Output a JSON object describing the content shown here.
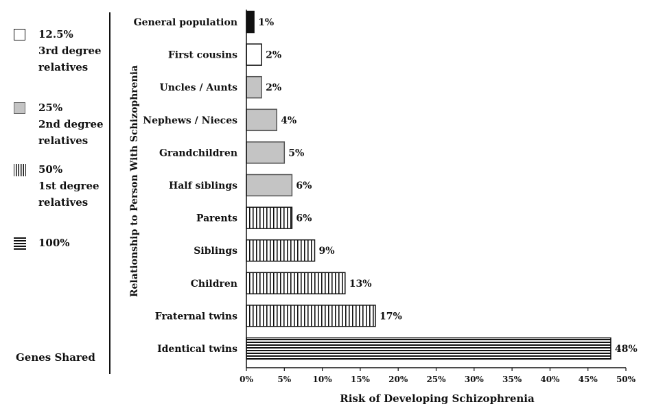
{
  "legend": {
    "items": [
      {
        "pct": "12.5%",
        "line1": "3rd degree",
        "line2": "relatives",
        "pattern": "white"
      },
      {
        "pct": "25%",
        "line1": "2nd degree",
        "line2": "relatives",
        "pattern": "gray"
      },
      {
        "pct": "50%",
        "line1": "1st degree",
        "line2": "relatives",
        "pattern": "vertical"
      },
      {
        "pct": "100%",
        "line1": "",
        "line2": "",
        "pattern": "horizontal"
      }
    ],
    "footer": "Genes Shared"
  },
  "chart_data": {
    "type": "bar",
    "orientation": "horizontal",
    "xlabel": "Risk of Developing Schizophrenia",
    "ylabel": "Relationship to Person With Schizophrenia",
    "xlim": [
      0,
      50
    ],
    "xticks": [
      "0%",
      "5%",
      "10%",
      "15%",
      "20%",
      "25%",
      "30%",
      "35%",
      "40%",
      "45%",
      "50%"
    ],
    "xtick_values": [
      0,
      5,
      10,
      15,
      20,
      25,
      30,
      35,
      40,
      45,
      50
    ],
    "categories": [
      "General population",
      "First cousins",
      "Uncles / Aunts",
      "Nephews / Nieces",
      "Grandchildren",
      "Half siblings",
      "Parents",
      "Siblings",
      "Children",
      "Fraternal twins",
      "Identical twins"
    ],
    "values": [
      1,
      2,
      2,
      4,
      5,
      6,
      6,
      9,
      13,
      17,
      48
    ],
    "value_labels": [
      "1%",
      "2%",
      "2%",
      "4%",
      "5%",
      "6%",
      "6%",
      "9%",
      "13%",
      "17%",
      "48%"
    ],
    "patterns": [
      "black",
      "white",
      "gray",
      "gray",
      "gray",
      "gray",
      "vertical",
      "vertical",
      "vertical",
      "vertical",
      "horizontal"
    ],
    "grid": false
  },
  "colors": {
    "black": "#111111",
    "gray": "#c4c4c4",
    "white": "#ffffff"
  }
}
